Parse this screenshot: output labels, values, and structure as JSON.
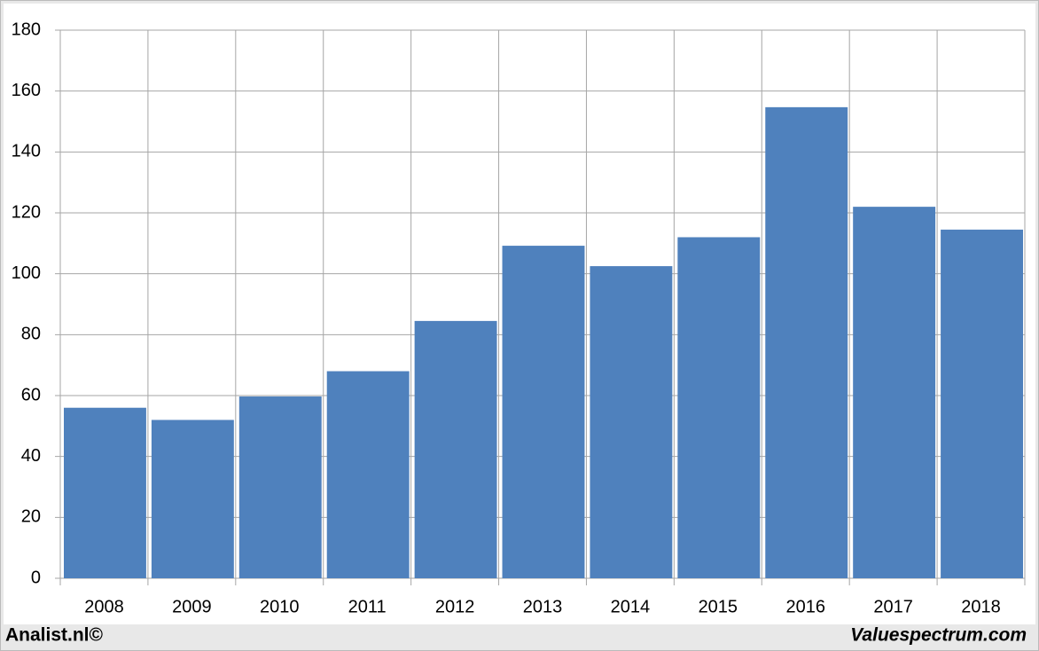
{
  "chart_data": {
    "type": "bar",
    "categories": [
      "2008",
      "2009",
      "2010",
      "2011",
      "2012",
      "2013",
      "2014",
      "2015",
      "2016",
      "2017",
      "2018"
    ],
    "values": [
      56,
      52,
      59.7,
      68,
      84.5,
      109.2,
      102.5,
      112,
      154.7,
      122,
      114.5
    ],
    "color": "#4f81bd",
    "ylim": [
      0,
      180
    ],
    "yticks": [
      0,
      20,
      40,
      60,
      80,
      100,
      120,
      140,
      160,
      180
    ],
    "grid": true,
    "footer_left": "Analist.nl©",
    "footer_right": "Valuespectrum.com"
  }
}
